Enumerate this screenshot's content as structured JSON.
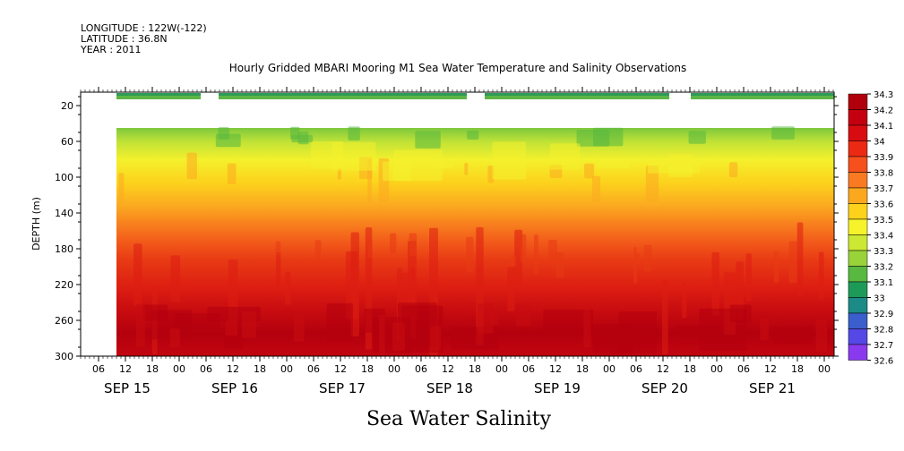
{
  "header": {
    "longitude": "LONGITUDE : 122W(-122)",
    "latitude": "LATITUDE : 36.8N",
    "year": "YEAR : 2011"
  },
  "chart_data": {
    "type": "heatmap",
    "title": "Hourly Gridded MBARI Mooring M1 Sea Water Temperature and Salinity Observations",
    "xlabel": "Sea Water Salinity",
    "ylabel": "DEPTH (m)",
    "y_ticks": [
      20,
      60,
      100,
      140,
      180,
      220,
      260,
      300
    ],
    "ylim": [
      300,
      5
    ],
    "hour_ticks": [
      "06",
      "12",
      "18",
      "00",
      "06",
      "12",
      "18",
      "00",
      "06",
      "12",
      "18",
      "00",
      "06",
      "12",
      "18",
      "00",
      "06",
      "12",
      "18",
      "00",
      "06",
      "12",
      "18",
      "00",
      "06",
      "12",
      "18",
      "00"
    ],
    "day_labels": [
      "SEP 15",
      "SEP 16",
      "SEP 17",
      "SEP 18",
      "SEP 19",
      "SEP 20",
      "SEP 21"
    ],
    "colorbar_levels": [
      "34.3",
      "34.2",
      "34.1",
      "34",
      "33.9",
      "33.8",
      "33.7",
      "33.6",
      "33.5",
      "33.4",
      "33.3",
      "33.2",
      "33.1",
      "33",
      "32.9",
      "32.8",
      "32.7",
      "32.6"
    ],
    "colorbar_colors": [
      "#b0000c",
      "#c40010",
      "#d80c10",
      "#ec2a14",
      "#f6501c",
      "#fa7a22",
      "#fca81e",
      "#fdd21a",
      "#f6f32a",
      "#cce832",
      "#9ad23a",
      "#58b840",
      "#1e9a58",
      "#1c8a86",
      "#3a5ecc",
      "#5548e6",
      "#8a3aee",
      "#c63cf0"
    ],
    "depth_profile": [
      {
        "depth": 12,
        "value": 33.25
      },
      {
        "depth": 40,
        "value": 33.45
      },
      {
        "depth": 50,
        "value": 33.6
      },
      {
        "depth": 70,
        "value": 33.75
      },
      {
        "depth": 100,
        "value": 33.8
      },
      {
        "depth": 120,
        "value": 33.9
      },
      {
        "depth": 140,
        "value": 34.0
      },
      {
        "depth": 180,
        "value": 34.05
      },
      {
        "depth": 220,
        "value": 34.1
      },
      {
        "depth": 260,
        "value": 34.2
      },
      {
        "depth": 300,
        "value": 34.25
      }
    ]
  }
}
